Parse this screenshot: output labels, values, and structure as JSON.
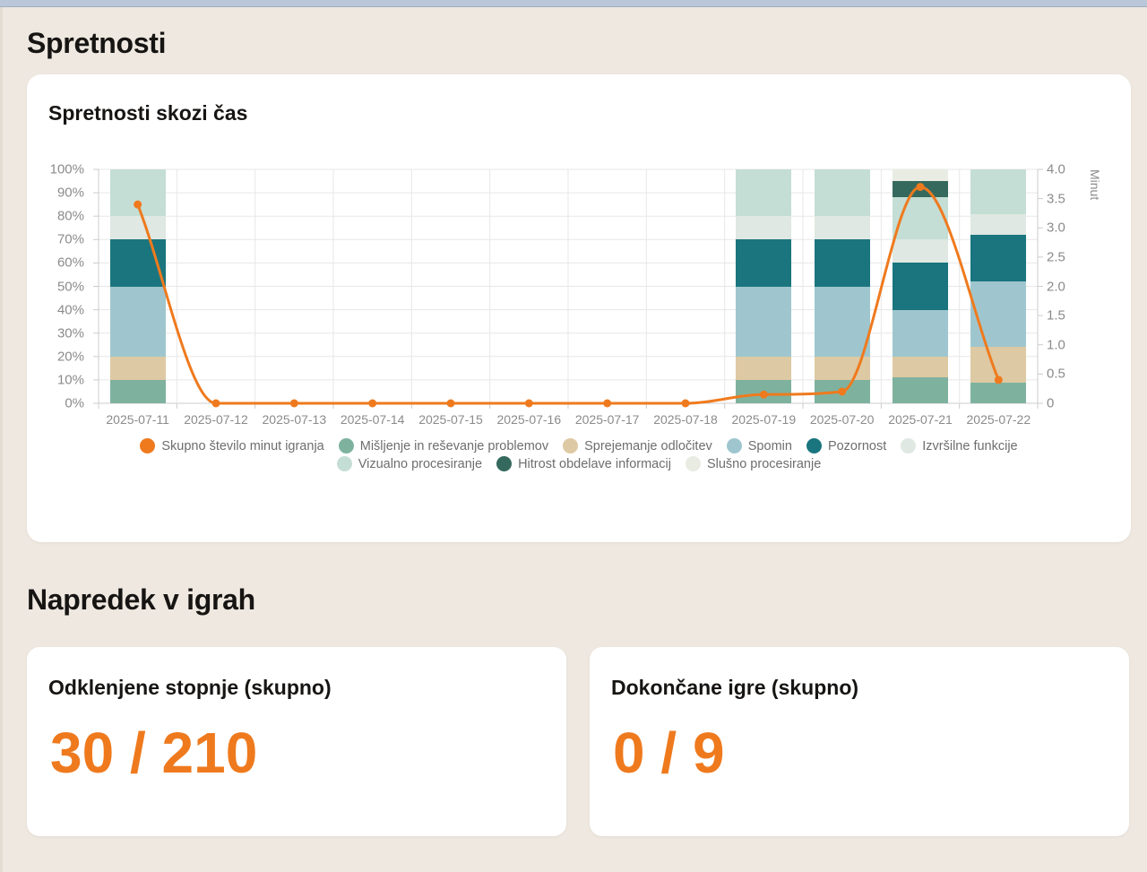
{
  "page": {
    "title": "Spretnosti",
    "games_section_title": "Napredek v igrah"
  },
  "chart_card": {
    "title": "Spretnosti skozi čas"
  },
  "chart_data": {
    "type": "bar",
    "subtype": "stacked-percent-bars-with-line",
    "title": "Spretnosti skozi čas",
    "categories": [
      "2025-07-11",
      "2025-07-12",
      "2025-07-13",
      "2025-07-14",
      "2025-07-15",
      "2025-07-16",
      "2025-07-17",
      "2025-07-18",
      "2025-07-19",
      "2025-07-20",
      "2025-07-21",
      "2025-07-22"
    ],
    "bar_series": [
      {
        "name": "Mišljenje in reševanje problemov",
        "color": "#7eb29e",
        "values": [
          10,
          0,
          0,
          0,
          0,
          0,
          0,
          0,
          10,
          10,
          11,
          9
        ]
      },
      {
        "name": "Sprejemanje odločitev",
        "color": "#ddc9a3",
        "values": [
          10,
          0,
          0,
          0,
          0,
          0,
          0,
          0,
          10,
          10,
          9,
          15
        ]
      },
      {
        "name": "Spomin",
        "color": "#9fc6ce",
        "values": [
          30,
          0,
          0,
          0,
          0,
          0,
          0,
          0,
          30,
          30,
          20,
          28
        ]
      },
      {
        "name": "Pozornost",
        "color": "#1a757e",
        "values": [
          20,
          0,
          0,
          0,
          0,
          0,
          0,
          0,
          20,
          20,
          20,
          20
        ]
      },
      {
        "name": "Izvršilne funkcije",
        "color": "#dfe8e2",
        "values": [
          10,
          0,
          0,
          0,
          0,
          0,
          0,
          0,
          10,
          10,
          10,
          9
        ]
      },
      {
        "name": "Vizualno procesiranje",
        "color": "#c4ded5",
        "values": [
          20,
          0,
          0,
          0,
          0,
          0,
          0,
          0,
          20,
          20,
          18,
          19
        ]
      },
      {
        "name": "Hitrost obdelave informacij",
        "color": "#35695e",
        "values": [
          0,
          0,
          0,
          0,
          0,
          0,
          0,
          0,
          0,
          0,
          7,
          0
        ]
      },
      {
        "name": "Slušno procesiranje",
        "color": "#e9ece3",
        "values": [
          0,
          0,
          0,
          0,
          0,
          0,
          0,
          0,
          0,
          0,
          5,
          0
        ]
      }
    ],
    "line_series": {
      "name": "Skupno število minut igranja",
      "color": "#ef7a1e",
      "values": [
        3.4,
        0,
        0,
        0,
        0,
        0,
        0,
        0,
        0.15,
        0.2,
        3.7,
        0.4
      ]
    },
    "left_axis": {
      "ticks": [
        "0%",
        "10%",
        "20%",
        "30%",
        "40%",
        "50%",
        "60%",
        "70%",
        "80%",
        "90%",
        "100%"
      ],
      "min": 0,
      "max": 100
    },
    "right_axis": {
      "label": "Minut",
      "ticks": [
        "0",
        "0.5",
        "1.0",
        "1.5",
        "2.0",
        "2.5",
        "3.0",
        "3.5",
        "4.0"
      ],
      "min": 0,
      "max": 4
    },
    "legend_rows": [
      [
        "Skupno število minut igranja",
        "Mišljenje in reševanje problemov",
        "Sprejemanje odločitev",
        "Spomin",
        "Pozornost",
        "Izvršilne funkcije"
      ],
      [
        "Vizualno procesiranje",
        "Hitrost obdelave informacij",
        "Slušno procesiranje"
      ]
    ],
    "grid": true,
    "legend_position": "bottom"
  },
  "stats_cards": [
    {
      "label": "Odklenjene stopnje (skupno)",
      "value": "30 / 210"
    },
    {
      "label": "Dokončane igre (skupno)",
      "value": "0 / 9"
    }
  ]
}
